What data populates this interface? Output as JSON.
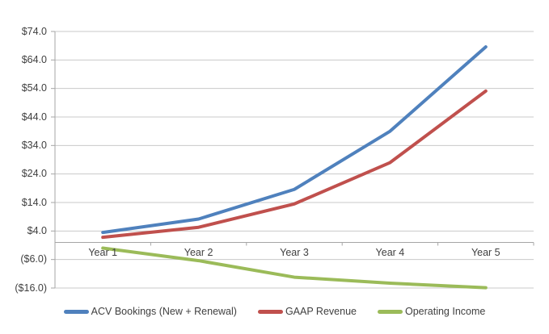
{
  "chart_data": {
    "type": "line",
    "categories": [
      "Year 1",
      "Year 2",
      "Year 3",
      "Year 4",
      "Year 5"
    ],
    "series": [
      {
        "name": "ACV Bookings (New + Renewal)",
        "color": "#4F81BD",
        "values": [
          3.5,
          8.2,
          18.6,
          39.0,
          68.6
        ]
      },
      {
        "name": "GAAP Revenue",
        "color": "#C0504D",
        "values": [
          1.8,
          5.3,
          13.5,
          28.0,
          53.1
        ]
      },
      {
        "name": "Operating Income",
        "color": "#9BBB59",
        "values": [
          -2.0,
          -6.4,
          -12.2,
          -14.3,
          -15.9
        ]
      }
    ],
    "y_ticks": [
      {
        "label": "$74.0",
        "value": 74
      },
      {
        "label": "$64.0",
        "value": 64
      },
      {
        "label": "$54.0",
        "value": 54
      },
      {
        "label": "$44.0",
        "value": 44
      },
      {
        "label": "$34.0",
        "value": 34
      },
      {
        "label": "$24.0",
        "value": 24
      },
      {
        "label": "$14.0",
        "value": 14
      },
      {
        "label": "$4.0",
        "value": 4
      },
      {
        "label": "($6.0)",
        "value": -6
      },
      {
        "label": "($16.0)",
        "value": -16
      }
    ],
    "ylim": [
      -16,
      74
    ],
    "xlabel": "",
    "ylabel": "",
    "grid": "horizontal",
    "legend_position": "bottom"
  },
  "colors": {
    "background": "#FFFFFF",
    "gridline": "#C9C9C9",
    "axis": "#A6A6A6",
    "text": "#3F3F3F"
  }
}
